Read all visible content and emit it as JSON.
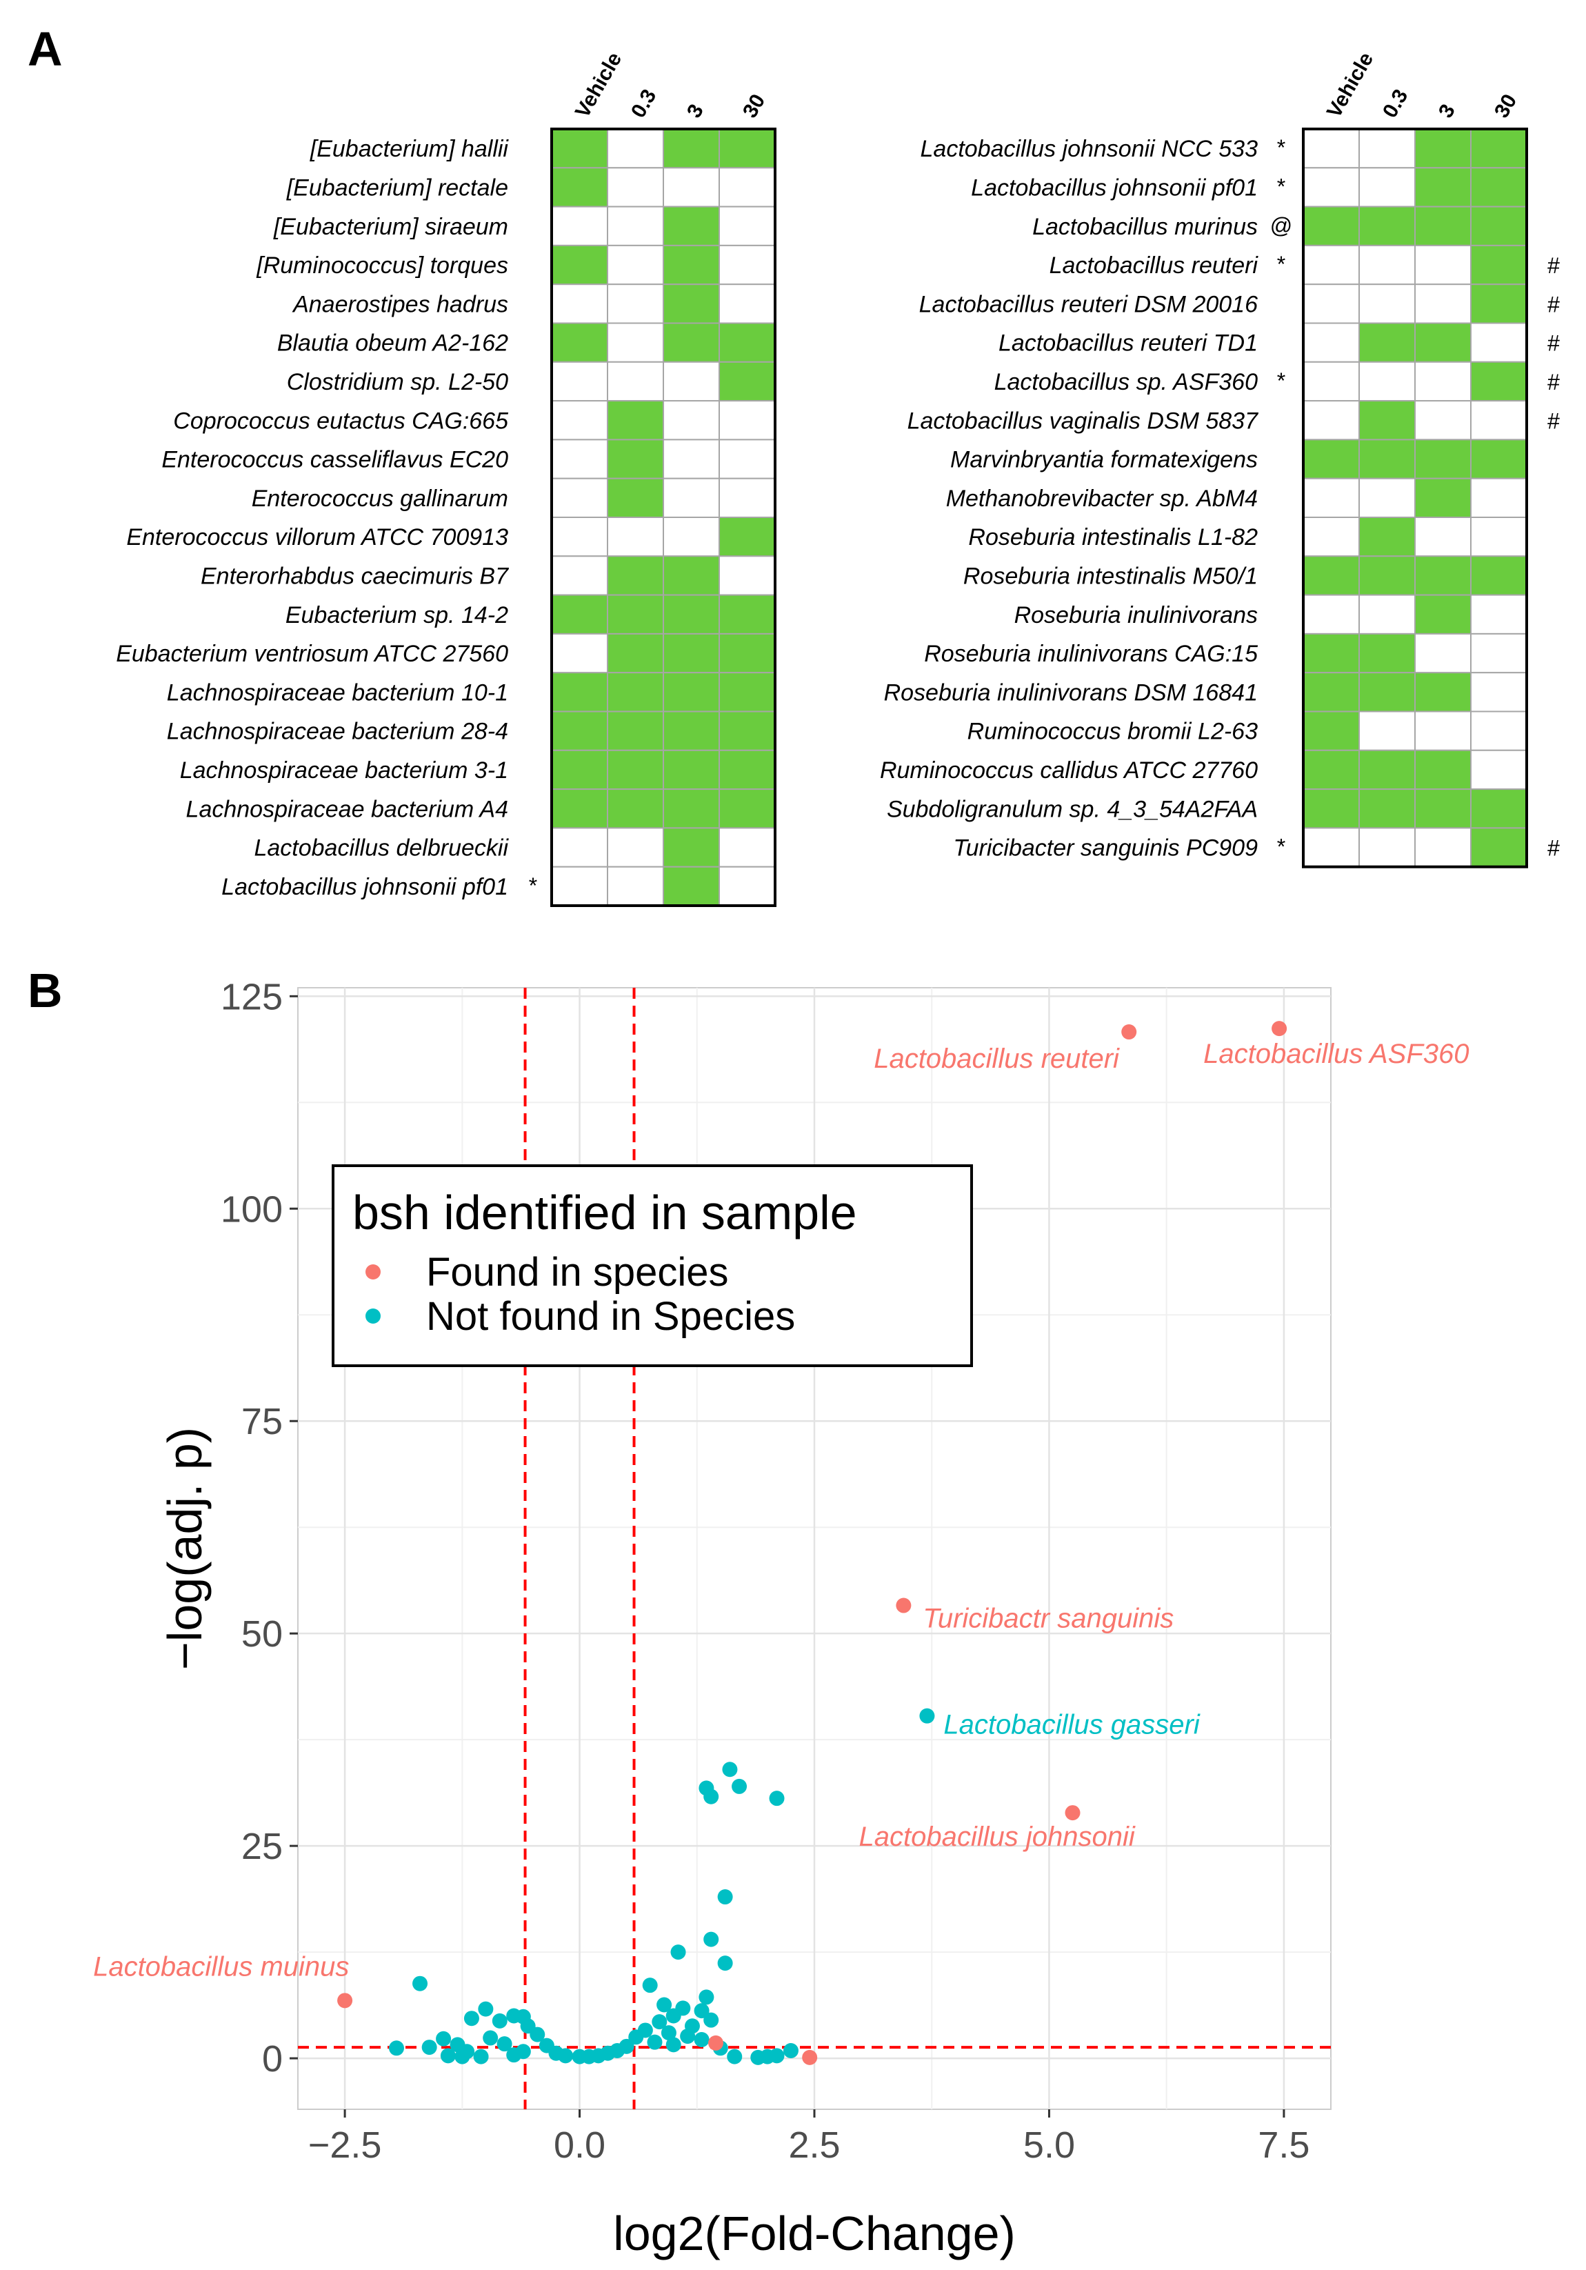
{
  "colors": {
    "present": "#6ACC3E",
    "absent": "#ffffff",
    "grid_line": "#a6a6a6",
    "found": "#F8766D",
    "notfound": "#00BFC4",
    "threshold": "#ff0000"
  },
  "panel_a": {
    "letter": "A",
    "columns": [
      "Vehicle",
      "0.3",
      "3",
      "30"
    ],
    "left": {
      "rows": [
        {
          "name": "[Eubacterium] hallii",
          "mark": "",
          "flag": "",
          "cells": [
            1,
            0,
            1,
            1
          ]
        },
        {
          "name": "[Eubacterium] rectale",
          "mark": "",
          "flag": "",
          "cells": [
            1,
            0,
            0,
            0
          ]
        },
        {
          "name": "[Eubacterium] siraeum",
          "mark": "",
          "flag": "",
          "cells": [
            0,
            0,
            1,
            0
          ]
        },
        {
          "name": "[Ruminococcus] torques",
          "mark": "",
          "flag": "",
          "cells": [
            1,
            0,
            1,
            0
          ]
        },
        {
          "name": "Anaerostipes hadrus",
          "mark": "",
          "flag": "",
          "cells": [
            0,
            0,
            1,
            0
          ]
        },
        {
          "name": "Blautia obeum A2-162",
          "mark": "",
          "flag": "",
          "cells": [
            1,
            0,
            1,
            1
          ]
        },
        {
          "name": "Clostridium sp. L2-50",
          "mark": "",
          "flag": "",
          "cells": [
            0,
            0,
            0,
            1
          ]
        },
        {
          "name": "Coprococcus eutactus CAG:665",
          "mark": "",
          "flag": "",
          "cells": [
            0,
            1,
            0,
            0
          ]
        },
        {
          "name": "Enterococcus casseliflavus EC20",
          "mark": "",
          "flag": "",
          "cells": [
            0,
            1,
            0,
            0
          ]
        },
        {
          "name": "Enterococcus gallinarum",
          "mark": "",
          "flag": "",
          "cells": [
            0,
            1,
            0,
            0
          ]
        },
        {
          "name": "Enterococcus villorum ATCC 700913",
          "mark": "",
          "flag": "",
          "cells": [
            0,
            0,
            0,
            1
          ]
        },
        {
          "name": "Enterorhabdus caecimuris B7",
          "mark": "",
          "flag": "",
          "cells": [
            0,
            1,
            1,
            0
          ]
        },
        {
          "name": "Eubacterium sp. 14-2",
          "mark": "",
          "flag": "",
          "cells": [
            1,
            1,
            1,
            1
          ]
        },
        {
          "name": "Eubacterium ventriosum ATCC 27560",
          "mark": "",
          "flag": "",
          "cells": [
            0,
            1,
            1,
            1
          ]
        },
        {
          "name": "Lachnospiraceae bacterium 10-1",
          "mark": "",
          "flag": "",
          "cells": [
            1,
            1,
            1,
            1
          ]
        },
        {
          "name": "Lachnospiraceae bacterium 28-4",
          "mark": "",
          "flag": "",
          "cells": [
            1,
            1,
            1,
            1
          ]
        },
        {
          "name": "Lachnospiraceae bacterium 3-1",
          "mark": "",
          "flag": "",
          "cells": [
            1,
            1,
            1,
            1
          ]
        },
        {
          "name": "Lachnospiraceae bacterium A4",
          "mark": "",
          "flag": "",
          "cells": [
            1,
            1,
            1,
            1
          ]
        },
        {
          "name": "Lactobacillus delbrueckii",
          "mark": "",
          "flag": "",
          "cells": [
            0,
            0,
            1,
            0
          ]
        },
        {
          "name": "Lactobacillus johnsonii pf01",
          "mark": "*",
          "flag": "",
          "cells": [
            0,
            0,
            1,
            0
          ]
        }
      ]
    },
    "right": {
      "rows": [
        {
          "name": "Lactobacillus johnsonii NCC 533",
          "mark": "*",
          "flag": "",
          "cells": [
            0,
            0,
            1,
            1
          ]
        },
        {
          "name": "Lactobacillus johnsonii pf01",
          "mark": "*",
          "flag": "",
          "cells": [
            0,
            0,
            1,
            1
          ]
        },
        {
          "name": "Lactobacillus murinus",
          "mark": "@",
          "flag": "",
          "cells": [
            1,
            1,
            1,
            1
          ]
        },
        {
          "name": "Lactobacillus reuteri",
          "mark": "*",
          "flag": "#",
          "cells": [
            0,
            0,
            0,
            1
          ]
        },
        {
          "name": "Lactobacillus reuteri DSM 20016",
          "mark": "",
          "flag": "#",
          "cells": [
            0,
            0,
            0,
            1
          ]
        },
        {
          "name": "Lactobacillus reuteri TD1",
          "mark": "",
          "flag": "#",
          "cells": [
            0,
            1,
            1,
            0
          ]
        },
        {
          "name": "Lactobacillus sp. ASF360",
          "mark": "*",
          "flag": "#",
          "cells": [
            0,
            0,
            0,
            1
          ]
        },
        {
          "name": "Lactobacillus vaginalis DSM 5837",
          "mark": "",
          "flag": "#",
          "cells": [
            0,
            1,
            0,
            0
          ]
        },
        {
          "name": "Marvinbryantia formatexigens",
          "mark": "",
          "flag": "",
          "cells": [
            1,
            1,
            1,
            1
          ]
        },
        {
          "name": "Methanobrevibacter sp. AbM4",
          "mark": "",
          "flag": "",
          "cells": [
            0,
            0,
            1,
            0
          ]
        },
        {
          "name": "Roseburia intestinalis L1-82",
          "mark": "",
          "flag": "",
          "cells": [
            0,
            1,
            0,
            0
          ]
        },
        {
          "name": "Roseburia intestinalis M50/1",
          "mark": "",
          "flag": "",
          "cells": [
            1,
            1,
            1,
            1
          ]
        },
        {
          "name": "Roseburia inulinivorans",
          "mark": "",
          "flag": "",
          "cells": [
            0,
            0,
            1,
            0
          ]
        },
        {
          "name": "Roseburia inulinivorans CAG:15",
          "mark": "",
          "flag": "",
          "cells": [
            1,
            1,
            0,
            0
          ]
        },
        {
          "name": "Roseburia inulinivorans DSM 16841",
          "mark": "",
          "flag": "",
          "cells": [
            1,
            1,
            1,
            0
          ]
        },
        {
          "name": "Ruminococcus bromii L2-63",
          "mark": "",
          "flag": "",
          "cells": [
            1,
            0,
            0,
            0
          ]
        },
        {
          "name": "Ruminococcus callidus ATCC 27760",
          "mark": "",
          "flag": "",
          "cells": [
            1,
            1,
            1,
            0
          ]
        },
        {
          "name": "Subdoligranulum sp. 4_3_54A2FAA",
          "mark": "",
          "flag": "",
          "cells": [
            1,
            1,
            1,
            1
          ]
        },
        {
          "name": "Turicibacter sanguinis PC909",
          "mark": "*",
          "flag": "#",
          "cells": [
            0,
            0,
            0,
            1
          ]
        }
      ]
    }
  },
  "chart_data": {
    "type": "scatter",
    "panel_letter": "B",
    "xlabel": "log2(Fold-Change)",
    "ylabel": "−log(adj. p)",
    "xlim": [
      -3.0,
      8.0
    ],
    "ylim": [
      -6,
      126
    ],
    "x_ticks": [
      -2.5,
      0.0,
      2.5,
      5.0,
      7.5
    ],
    "x_tick_labels": [
      "−2.5",
      "0.0",
      "2.5",
      "5.0",
      "7.5"
    ],
    "y_ticks": [
      0,
      25,
      50,
      75,
      100,
      125
    ],
    "y_tick_labels": [
      "0",
      "25",
      "50",
      "75",
      "100",
      "125"
    ],
    "grid": true,
    "vlines": [
      -0.58,
      0.58
    ],
    "hline": 1.3,
    "legend": {
      "title": "bsh identified in sample",
      "position": "upper-left",
      "entries": [
        {
          "label": "Found in species",
          "series": "found"
        },
        {
          "label": "Not found in Species",
          "series": "notfound"
        }
      ]
    },
    "series": [
      {
        "name": "Found in species",
        "key": "found",
        "points": [
          {
            "x": 7.45,
            "y": 121.2,
            "label": "Lactobacillus ASF360"
          },
          {
            "x": 5.85,
            "y": 120.8,
            "label": "Lactobacillus reuteri"
          },
          {
            "x": 3.45,
            "y": 53.3,
            "label": "Turicibactr sanguinis"
          },
          {
            "x": 5.25,
            "y": 28.9,
            "label": "Lactobacillus johnsonii"
          },
          {
            "x": -2.5,
            "y": 6.8,
            "label": "Lactobacillus muinus"
          },
          {
            "x": 2.45,
            "y": 0.1,
            "label": ""
          },
          {
            "x": 1.45,
            "y": 1.8,
            "label": ""
          }
        ]
      },
      {
        "name": "Not found in Species",
        "key": "notfound",
        "points": [
          {
            "x": 3.7,
            "y": 40.3,
            "label": "Lactobacillus gasseri"
          },
          {
            "x": 1.6,
            "y": 34.0,
            "label": ""
          },
          {
            "x": 1.7,
            "y": 32.0,
            "label": ""
          },
          {
            "x": 1.35,
            "y": 31.8,
            "label": ""
          },
          {
            "x": 1.4,
            "y": 30.8,
            "label": ""
          },
          {
            "x": 2.1,
            "y": 30.6,
            "label": ""
          },
          {
            "x": 1.55,
            "y": 19.0,
            "label": ""
          },
          {
            "x": 1.4,
            "y": 14.0,
            "label": ""
          },
          {
            "x": 1.05,
            "y": 12.5,
            "label": ""
          },
          {
            "x": 1.55,
            "y": 11.2,
            "label": ""
          },
          {
            "x": 0.75,
            "y": 8.6,
            "label": ""
          },
          {
            "x": 1.35,
            "y": 7.2,
            "label": ""
          },
          {
            "x": 1.3,
            "y": 5.6,
            "label": ""
          },
          {
            "x": 1.1,
            "y": 5.9,
            "label": ""
          },
          {
            "x": 1.0,
            "y": 5.0,
            "label": ""
          },
          {
            "x": 0.85,
            "y": 4.3,
            "label": ""
          },
          {
            "x": 0.9,
            "y": 6.3,
            "label": ""
          },
          {
            "x": 1.2,
            "y": 3.8,
            "label": ""
          },
          {
            "x": 1.4,
            "y": 4.5,
            "label": ""
          },
          {
            "x": 0.7,
            "y": 3.3,
            "label": ""
          },
          {
            "x": 0.95,
            "y": 3.0,
            "label": ""
          },
          {
            "x": 1.15,
            "y": 2.6,
            "label": ""
          },
          {
            "x": 1.3,
            "y": 2.2,
            "label": ""
          },
          {
            "x": 0.6,
            "y": 2.5,
            "label": ""
          },
          {
            "x": 0.8,
            "y": 1.9,
            "label": ""
          },
          {
            "x": 1.0,
            "y": 1.6,
            "label": ""
          },
          {
            "x": 0.5,
            "y": 1.4,
            "label": ""
          },
          {
            "x": 0.4,
            "y": 0.9,
            "label": ""
          },
          {
            "x": 0.3,
            "y": 0.6,
            "label": ""
          },
          {
            "x": 0.2,
            "y": 0.3,
            "label": ""
          },
          {
            "x": 1.5,
            "y": 1.2,
            "label": ""
          },
          {
            "x": 1.65,
            "y": 0.2,
            "label": ""
          },
          {
            "x": 1.9,
            "y": 0.1,
            "label": ""
          },
          {
            "x": 2.0,
            "y": 0.2,
            "label": ""
          },
          {
            "x": 2.1,
            "y": 0.3,
            "label": ""
          },
          {
            "x": 2.25,
            "y": 0.9,
            "label": ""
          },
          {
            "x": -1.7,
            "y": 8.8,
            "label": ""
          },
          {
            "x": -1.95,
            "y": 1.2,
            "label": ""
          },
          {
            "x": -1.6,
            "y": 1.3,
            "label": ""
          },
          {
            "x": -1.45,
            "y": 2.3,
            "label": ""
          },
          {
            "x": -1.4,
            "y": 0.3,
            "label": ""
          },
          {
            "x": -1.3,
            "y": 1.6,
            "label": ""
          },
          {
            "x": -1.15,
            "y": 4.7,
            "label": ""
          },
          {
            "x": -1.0,
            "y": 5.8,
            "label": ""
          },
          {
            "x": -0.85,
            "y": 4.4,
            "label": ""
          },
          {
            "x": -0.7,
            "y": 5.0,
            "label": ""
          },
          {
            "x": -0.6,
            "y": 4.9,
            "label": ""
          },
          {
            "x": -1.2,
            "y": 0.8,
            "label": ""
          },
          {
            "x": -0.95,
            "y": 2.4,
            "label": ""
          },
          {
            "x": -0.8,
            "y": 1.7,
            "label": ""
          },
          {
            "x": -0.55,
            "y": 3.8,
            "label": ""
          },
          {
            "x": -0.45,
            "y": 2.8,
            "label": ""
          },
          {
            "x": -0.35,
            "y": 1.5,
            "label": ""
          },
          {
            "x": -0.25,
            "y": 0.6,
            "label": ""
          },
          {
            "x": -0.6,
            "y": 0.8,
            "label": ""
          },
          {
            "x": -0.7,
            "y": 0.4,
            "label": ""
          },
          {
            "x": -0.15,
            "y": 0.3,
            "label": ""
          },
          {
            "x": -1.05,
            "y": 0.2,
            "label": ""
          },
          {
            "x": -1.25,
            "y": 0.2,
            "label": ""
          },
          {
            "x": 0.0,
            "y": 0.2,
            "label": ""
          },
          {
            "x": 0.1,
            "y": 0.2,
            "label": ""
          }
        ]
      }
    ]
  }
}
